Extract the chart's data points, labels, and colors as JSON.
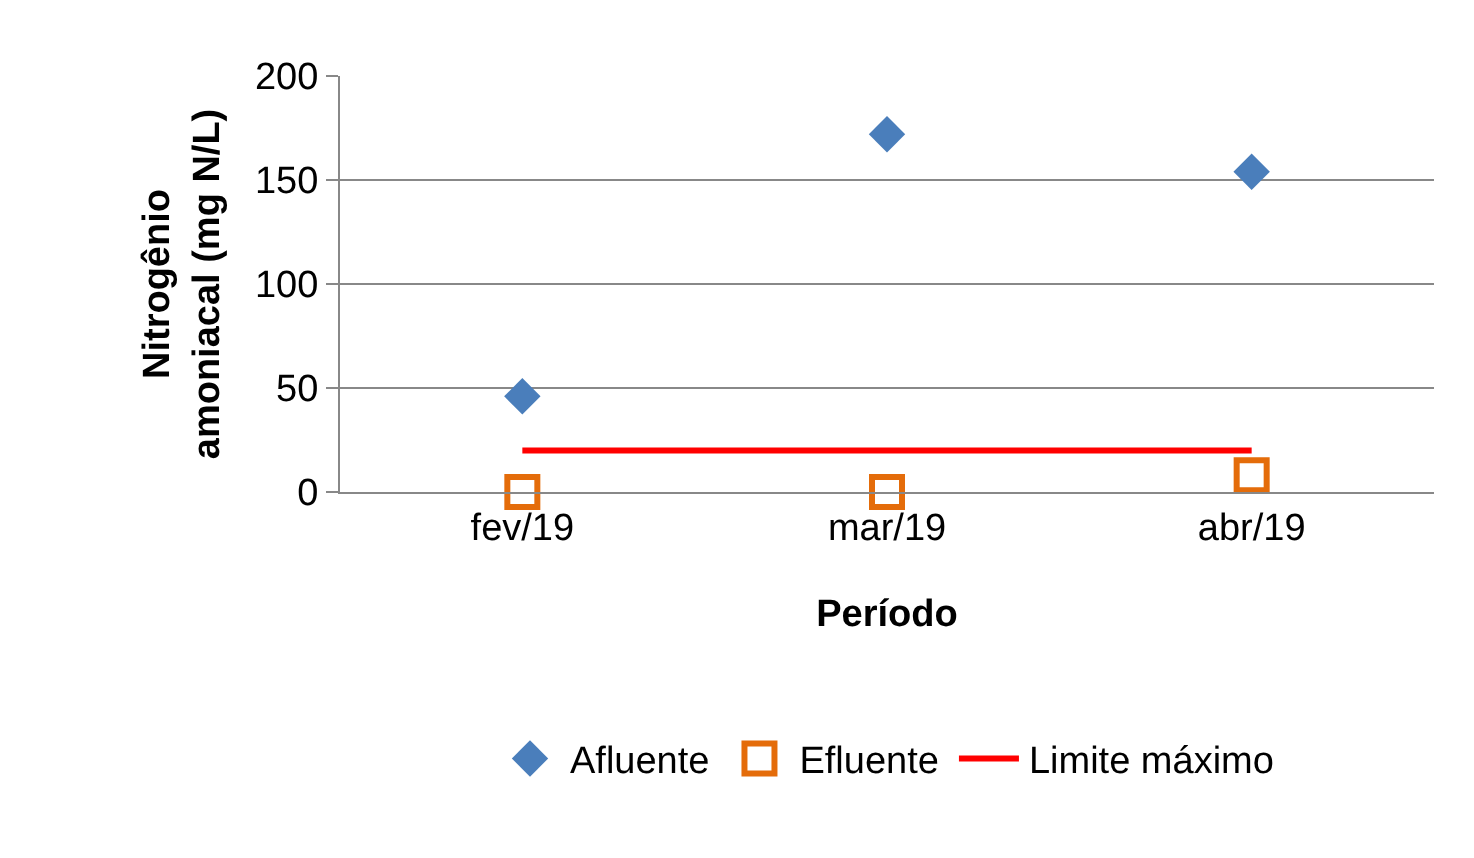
{
  "chart_data": {
    "type": "scatter",
    "xlabel": "Período",
    "ylabel": "Nitrogênio amoniacal (mg N/L)",
    "categories": [
      "fev/19",
      "mar/19",
      "abr/19"
    ],
    "ylim": [
      0,
      200
    ],
    "yticks": [
      0,
      50,
      100,
      150,
      200
    ],
    "grid": "y",
    "legend": "bottom",
    "series": [
      {
        "name": "Afluente",
        "color": "#4a7ebb",
        "marker": "diamond",
        "values": [
          46,
          172,
          154
        ]
      },
      {
        "name": "Efluente",
        "color": "#e46c0a",
        "marker": "square",
        "values": [
          0,
          0,
          8
        ]
      },
      {
        "name": "Limite máximo",
        "type": "line",
        "color": "#ff0000",
        "marker": "none",
        "values": [
          20,
          20,
          20
        ]
      }
    ]
  }
}
